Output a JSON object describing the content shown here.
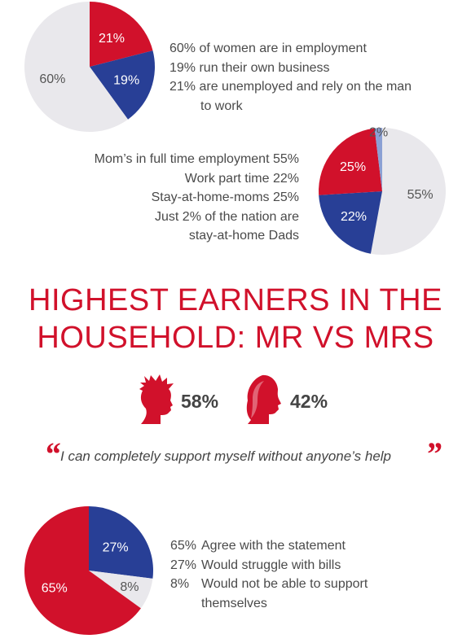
{
  "colors": {
    "red": "#d1112b",
    "blue": "#283f96",
    "gray": "#e9e8ec",
    "lightblue": "#8ba0d4"
  },
  "chart_data": [
    {
      "type": "pie",
      "slices": [
        {
          "label": "21%",
          "value": 21,
          "color": "#d1112b"
        },
        {
          "label": "19%",
          "value": 19,
          "color": "#283f96"
        },
        {
          "label": "60%",
          "value": 60,
          "color": "#e9e8ec"
        }
      ],
      "legend": [
        "60% of women are in employment",
        "19% run their own business",
        "21% are unemployed and rely on the man",
        "to work"
      ]
    },
    {
      "type": "pie",
      "slices": [
        {
          "label": "55%",
          "value": 55,
          "color": "#e9e8ec"
        },
        {
          "label": "22%",
          "value": 22,
          "color": "#283f96"
        },
        {
          "label": "25%",
          "value": 25,
          "color": "#d1112b"
        },
        {
          "label": "2%",
          "value": 2,
          "color": "#8ba0d4"
        }
      ],
      "legend": [
        "Mom’s in full time employment 55%",
        "Work part time 22%",
        "Stay-at-home-moms 25%",
        "Just 2% of the nation are",
        "stay-at-home Dads"
      ]
    },
    {
      "type": "pie",
      "slices": [
        {
          "label": "27%",
          "value": 27,
          "color": "#283f96"
        },
        {
          "label": "8%",
          "value": 8,
          "color": "#e9e8ec"
        },
        {
          "label": "65%",
          "value": 65,
          "color": "#d1112b"
        }
      ],
      "legend": [
        {
          "pct": "65%",
          "text": "Agree with the statement"
        },
        {
          "pct": "27%",
          "text": "Would struggle with bills"
        },
        {
          "pct": "8%",
          "text": "Would not be able to support"
        },
        {
          "pct": "",
          "text": "themselves"
        }
      ]
    }
  ],
  "heading": {
    "line1": "HIGHEST EARNERS IN THE",
    "line2": "HOUSEHOLD: MR VS MRS"
  },
  "earners": {
    "mr": "58%",
    "mrs": "42%"
  },
  "quote": {
    "open": "“",
    "text": "I can completely support myself without anyone’s help",
    "close": "”"
  }
}
